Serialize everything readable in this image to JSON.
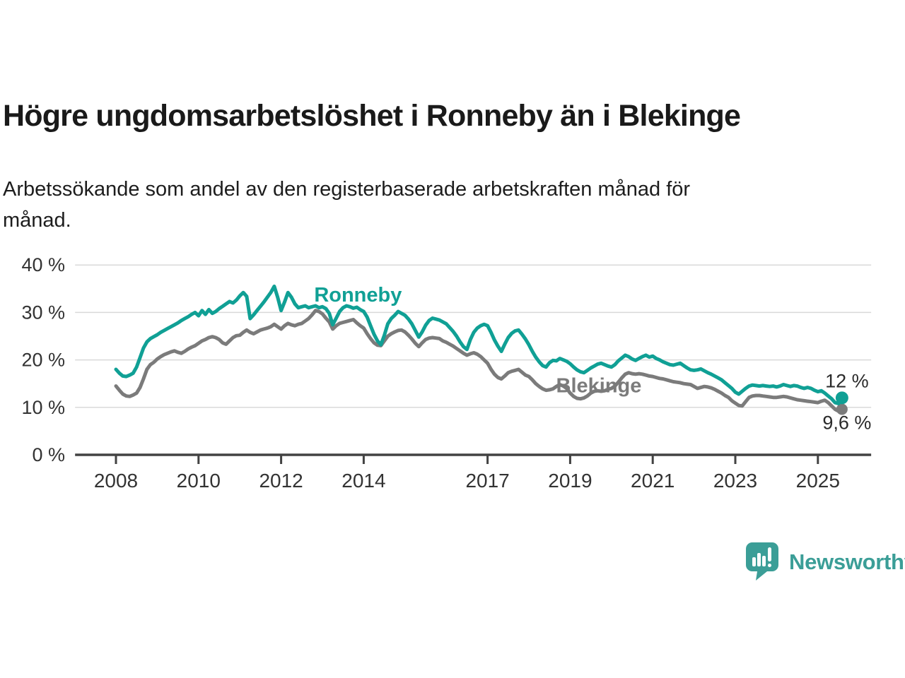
{
  "header": {
    "title": "Högre ungdomsarbetslöshet i Ronneby än i Blekinge",
    "subtitle_lines": [
      "Arbetssökande som andel av den registerbaserade arbetskraften månad för",
      "månad."
    ]
  },
  "branding": {
    "logo_text": "Newsworthy",
    "logo_icon": "newsworthy-chart-bubble-icon",
    "color": "#3b9e97"
  },
  "chart_data": {
    "type": "line",
    "title": "Högre ungdomsarbetslöshet i Ronneby än i Blekinge",
    "subtitle": "Arbetssökande som andel av den registerbaserade arbetskraften månad för månad.",
    "frequency": "monthly",
    "start_year": 2008,
    "start_month": 1,
    "xlim": [
      2007.01,
      2026.29
    ],
    "ylim": [
      0,
      40
    ],
    "grid": true,
    "legend": "inline-labels",
    "grid_color": "#d9d9d9",
    "axis_color": "#424242",
    "axis_text_color": "#333333",
    "annotation_color": "#2b2b2b",
    "yticks": [
      {
        "value": 40,
        "label": "40 %"
      },
      {
        "value": 30,
        "label": "30 %"
      },
      {
        "value": 20,
        "label": "20 %"
      },
      {
        "value": 10,
        "label": "10 %"
      },
      {
        "value": 0,
        "label": "0 %"
      }
    ],
    "xticks": [
      "2008",
      "2010",
      "2012",
      "2014",
      "2017",
      "2019",
      "2021",
      "2023",
      "2025"
    ],
    "xtick_years": [
      2008,
      2010,
      2012,
      2014,
      2017,
      2019,
      2021,
      2023,
      2025
    ],
    "series": [
      {
        "name": "Ronneby",
        "color": "#10a095",
        "end_label": "12 %",
        "end_label_side": "above",
        "label_anchor": {
          "year": 2012.8,
          "value": 32.3
        },
        "values": [
          18.0,
          17.2,
          16.6,
          16.5,
          16.8,
          17.2,
          18.5,
          20.5,
          22.5,
          23.8,
          24.5,
          24.9,
          25.3,
          25.8,
          26.2,
          26.6,
          27.0,
          27.4,
          27.8,
          28.3,
          28.7,
          29.1,
          29.6,
          30.0,
          29.3,
          30.4,
          29.6,
          30.6,
          29.8,
          30.2,
          30.8,
          31.3,
          31.8,
          32.3,
          32.0,
          32.6,
          33.5,
          34.2,
          33.4,
          28.7,
          29.5,
          30.4,
          31.3,
          32.2,
          33.2,
          34.2,
          35.5,
          33.2,
          30.4,
          32.2,
          34.2,
          33.2,
          31.8,
          31.0,
          31.2,
          31.4,
          31.0,
          31.2,
          31.4,
          31.0,
          31.2,
          30.8,
          29.8,
          27.4,
          28.8,
          30.2,
          31.0,
          31.4,
          31.2,
          30.9,
          31.1,
          30.6,
          30.2,
          29.0,
          27.2,
          25.4,
          24.0,
          23.2,
          25.2,
          27.6,
          28.7,
          29.4,
          30.2,
          29.8,
          29.4,
          28.6,
          27.6,
          26.2,
          24.8,
          25.9,
          27.3,
          28.3,
          28.8,
          28.6,
          28.4,
          28.0,
          27.6,
          26.8,
          26.0,
          25.0,
          23.8,
          22.8,
          22.2,
          24.3,
          25.8,
          26.7,
          27.2,
          27.5,
          27.2,
          25.8,
          24.2,
          22.9,
          21.8,
          23.3,
          24.7,
          25.6,
          26.1,
          26.3,
          25.4,
          24.4,
          23.2,
          21.8,
          20.6,
          19.6,
          18.8,
          18.5,
          19.4,
          19.9,
          19.8,
          20.3,
          20.0,
          19.7,
          19.2,
          18.5,
          17.9,
          17.5,
          17.3,
          17.8,
          18.3,
          18.7,
          19.1,
          19.3,
          19.0,
          18.7,
          18.5,
          19.0,
          19.8,
          20.4,
          21.0,
          20.7,
          20.2,
          19.9,
          20.3,
          20.7,
          21.0,
          20.6,
          20.8,
          20.3,
          20.0,
          19.6,
          19.3,
          19.0,
          18.9,
          19.1,
          19.3,
          18.8,
          18.3,
          17.9,
          17.8,
          17.9,
          18.1,
          17.7,
          17.3,
          17.0,
          16.6,
          16.2,
          15.8,
          15.2,
          14.6,
          14.0,
          13.2,
          12.8,
          13.4,
          14.0,
          14.5,
          14.7,
          14.6,
          14.5,
          14.6,
          14.5,
          14.4,
          14.5,
          14.3,
          14.5,
          14.8,
          14.6,
          14.4,
          14.6,
          14.5,
          14.2,
          14.0,
          14.2,
          14.0,
          13.6,
          13.3,
          13.5,
          13.0,
          12.4,
          11.8,
          11.0,
          10.8,
          12.0
        ]
      },
      {
        "name": "Blekinge",
        "color": "#7b7b7b",
        "end_label": "9,6 %",
        "end_label_side": "below",
        "label_anchor": {
          "year": 2018.66,
          "value": 13.2
        },
        "values": [
          14.5,
          13.6,
          12.8,
          12.4,
          12.3,
          12.6,
          13.0,
          14.2,
          16.0,
          18.0,
          19.0,
          19.5,
          20.2,
          20.7,
          21.1,
          21.4,
          21.7,
          21.9,
          21.6,
          21.4,
          21.8,
          22.3,
          22.7,
          23.0,
          23.5,
          24.0,
          24.3,
          24.7,
          24.9,
          24.7,
          24.3,
          23.6,
          23.3,
          24.0,
          24.7,
          25.1,
          25.2,
          25.8,
          26.3,
          25.8,
          25.5,
          25.9,
          26.3,
          26.5,
          26.7,
          27.0,
          27.5,
          27.0,
          26.5,
          27.2,
          27.7,
          27.4,
          27.2,
          27.5,
          27.7,
          28.2,
          28.7,
          29.5,
          30.4,
          30.2,
          29.7,
          28.8,
          28.0,
          26.5,
          27.2,
          27.7,
          27.9,
          28.1,
          28.3,
          28.5,
          27.8,
          27.2,
          26.7,
          25.5,
          24.5,
          23.6,
          23.1,
          23.0,
          24.0,
          25.0,
          25.5,
          25.9,
          26.2,
          26.3,
          25.9,
          25.2,
          24.4,
          23.5,
          22.8,
          23.6,
          24.3,
          24.6,
          24.7,
          24.6,
          24.5,
          24.0,
          23.7,
          23.3,
          22.9,
          22.4,
          21.9,
          21.4,
          21.0,
          21.3,
          21.5,
          21.2,
          20.7,
          20.0,
          19.3,
          18.0,
          17.0,
          16.3,
          16.0,
          16.6,
          17.3,
          17.6,
          17.8,
          18.0,
          17.4,
          16.8,
          16.5,
          15.8,
          15.0,
          14.4,
          13.9,
          13.6,
          13.7,
          13.9,
          14.4,
          14.8,
          14.5,
          14.0,
          13.0,
          12.3,
          11.9,
          11.8,
          12.0,
          12.4,
          13.0,
          13.4,
          13.5,
          13.4,
          13.5,
          13.8,
          14.0,
          14.5,
          15.3,
          16.2,
          17.0,
          17.3,
          17.1,
          17.0,
          17.1,
          17.0,
          16.8,
          16.6,
          16.5,
          16.3,
          16.1,
          16.0,
          15.8,
          15.6,
          15.4,
          15.3,
          15.2,
          15.0,
          14.9,
          14.8,
          14.4,
          14.0,
          14.2,
          14.4,
          14.3,
          14.1,
          13.8,
          13.4,
          13.0,
          12.5,
          12.1,
          11.4,
          10.9,
          10.4,
          10.3,
          11.2,
          12.1,
          12.4,
          12.5,
          12.5,
          12.4,
          12.3,
          12.2,
          12.1,
          12.1,
          12.2,
          12.3,
          12.2,
          12.0,
          11.8,
          11.6,
          11.5,
          11.4,
          11.3,
          11.2,
          11.1,
          11.0,
          11.3,
          11.5,
          11.0,
          10.3,
          9.6,
          9.2,
          9.6
        ]
      }
    ]
  }
}
